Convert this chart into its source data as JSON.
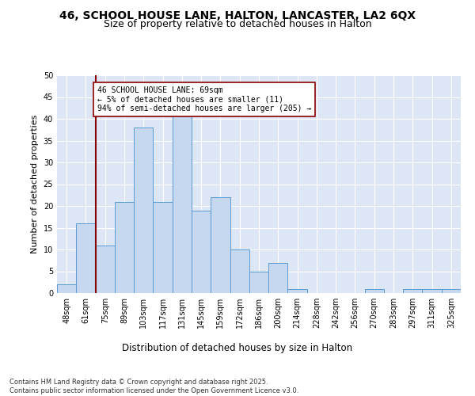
{
  "title1": "46, SCHOOL HOUSE LANE, HALTON, LANCASTER, LA2 6QX",
  "title2": "Size of property relative to detached houses in Halton",
  "xlabel": "Distribution of detached houses by size in Halton",
  "ylabel": "Number of detached properties",
  "categories": [
    "48sqm",
    "61sqm",
    "75sqm",
    "89sqm",
    "103sqm",
    "117sqm",
    "131sqm",
    "145sqm",
    "159sqm",
    "172sqm",
    "186sqm",
    "200sqm",
    "214sqm",
    "228sqm",
    "242sqm",
    "256sqm",
    "270sqm",
    "283sqm",
    "297sqm",
    "311sqm",
    "325sqm"
  ],
  "values": [
    2,
    16,
    11,
    21,
    38,
    21,
    41,
    19,
    22,
    10,
    5,
    7,
    1,
    0,
    0,
    0,
    1,
    0,
    1,
    1,
    1
  ],
  "bar_color": "#c5d8f0",
  "bar_edge_color": "#5a9bd5",
  "bar_width": 1.0,
  "subject_line_color": "#8b0000",
  "annotation_text": "46 SCHOOL HOUSE LANE: 69sqm\n← 5% of detached houses are smaller (11)\n94% of semi-detached houses are larger (205) →",
  "annotation_box_color": "#ffffff",
  "annotation_box_edge_color": "#8b0000",
  "ylim": [
    0,
    50
  ],
  "yticks": [
    0,
    5,
    10,
    15,
    20,
    25,
    30,
    35,
    40,
    45,
    50
  ],
  "background_color": "#dce6f5",
  "fig_background": "#ffffff",
  "footer_text": "Contains HM Land Registry data © Crown copyright and database right 2025.\nContains public sector information licensed under the Open Government Licence v3.0.",
  "title1_fontsize": 10,
  "title2_fontsize": 9,
  "xlabel_fontsize": 8.5,
  "ylabel_fontsize": 8,
  "annotation_fontsize": 7,
  "footer_fontsize": 6,
  "tick_fontsize": 7
}
